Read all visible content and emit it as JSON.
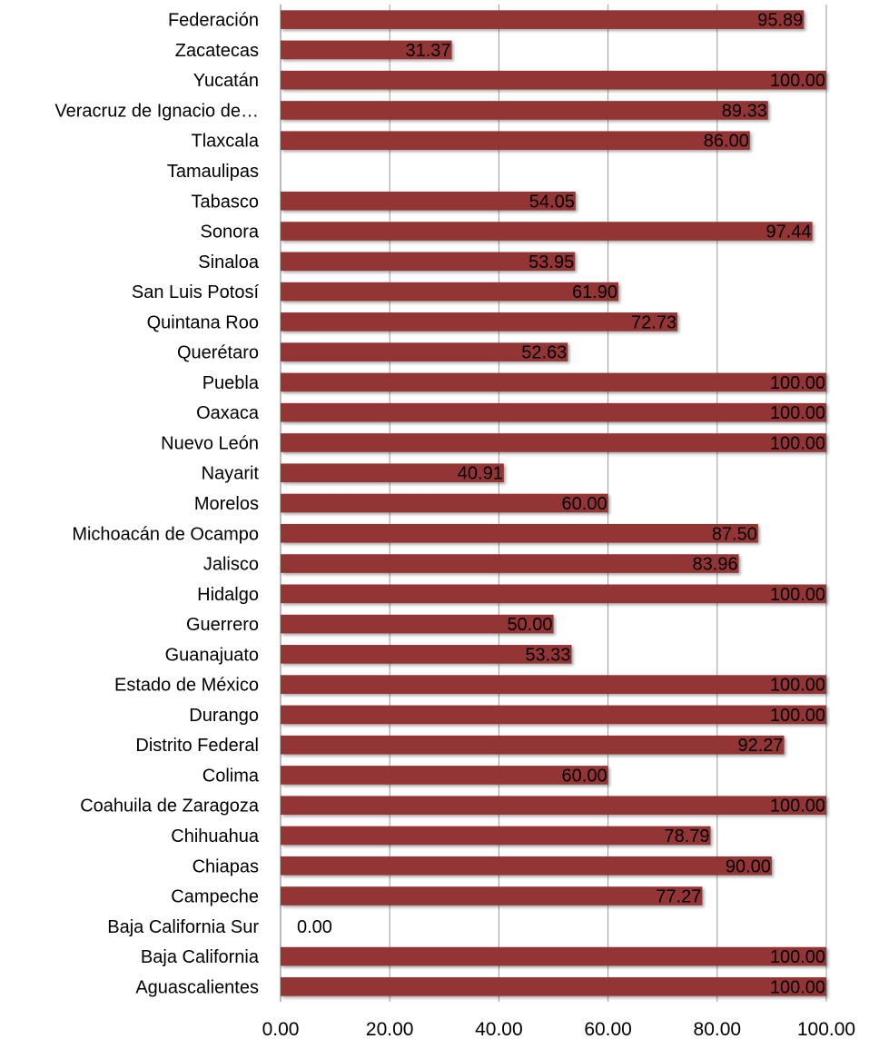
{
  "chart_data": {
    "type": "bar",
    "orientation": "horizontal",
    "categories": [
      "Federación",
      "Zacatecas",
      "Yucatán",
      "Veracruz de Ignacio de…",
      "Tlaxcala",
      "Tamaulipas",
      "Tabasco",
      "Sonora",
      "Sinaloa",
      "San Luis Potosí",
      "Quintana Roo",
      "Querétaro",
      "Puebla",
      "Oaxaca",
      "Nuevo León",
      "Nayarit",
      "Morelos",
      "Michoacán de Ocampo",
      "Jalisco",
      "Hidalgo",
      "Guerrero",
      "Guanajuato",
      "Estado de México",
      "Durango",
      "Distrito Federal",
      "Colima",
      "Coahuila de Zaragoza",
      "Chihuahua",
      "Chiapas",
      "Campeche",
      "Baja California Sur",
      "Baja California",
      "Aguascalientes"
    ],
    "values": [
      95.89,
      31.37,
      100.0,
      89.33,
      86.0,
      null,
      54.05,
      97.44,
      53.95,
      61.9,
      72.73,
      52.63,
      100.0,
      100.0,
      100.0,
      40.91,
      60.0,
      87.5,
      83.96,
      100.0,
      50.0,
      53.33,
      100.0,
      100.0,
      92.27,
      60.0,
      100.0,
      78.79,
      90.0,
      77.27,
      0.0,
      100.0,
      100.0
    ],
    "data_labels": [
      "95.89",
      "31.37",
      "100.00",
      "89.33",
      "86.00",
      "",
      "54.05",
      "97.44",
      "53.95",
      "61.90",
      "72.73",
      "52.63",
      "100.00",
      "100.00",
      "100.00",
      "40.91",
      "60.00",
      "87.50",
      "83.96",
      "100.00",
      "50.00",
      "53.33",
      "100.00",
      "100.00",
      "92.27",
      "60.00",
      "100.00",
      "78.79",
      "90.00",
      "77.27",
      "0.00",
      "100.00",
      "100.00"
    ],
    "x_ticks": [
      "0.00",
      "20.00",
      "40.00",
      "60.00",
      "80.00",
      "100.00"
    ],
    "xlim": [
      0,
      100
    ],
    "grid": true,
    "bar_color": "#943634",
    "title": "",
    "xlabel": "",
    "ylabel": ""
  }
}
